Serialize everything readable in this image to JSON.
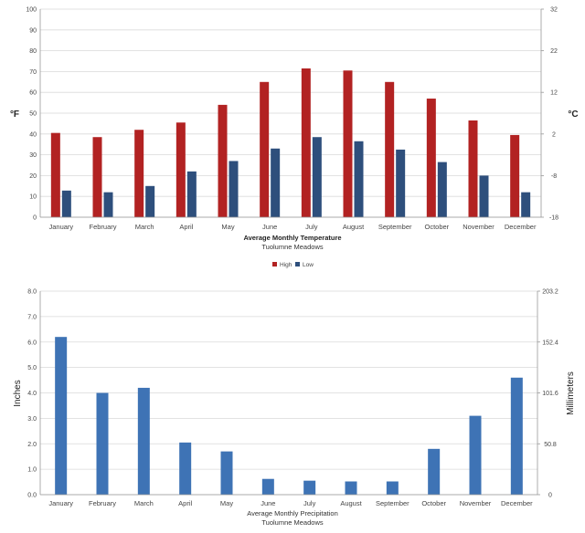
{
  "chart_data": [
    {
      "type": "bar",
      "title": "Average Monthly Temperature",
      "subtitle": "Tuolumne Meadows",
      "categories": [
        "January",
        "February",
        "March",
        "April",
        "May",
        "June",
        "July",
        "August",
        "September",
        "October",
        "November",
        "December"
      ],
      "series": [
        {
          "name": "High",
          "color": "#b22222",
          "values": [
            40.5,
            38.5,
            42,
            45.5,
            54,
            65,
            71.5,
            70.5,
            65,
            57,
            46.5,
            39.5
          ]
        },
        {
          "name": "Low",
          "color": "#2e4f7c",
          "values": [
            12.8,
            12,
            15,
            22,
            27,
            33,
            38.5,
            36.5,
            32.5,
            26.5,
            20,
            12
          ]
        }
      ],
      "ylabel": "°F",
      "ylabel_right": "°C",
      "ylim": [
        0,
        100
      ],
      "yticks": [
        "0",
        "10",
        "20",
        "30",
        "40",
        "50",
        "60",
        "70",
        "80",
        "90",
        "100"
      ],
      "yticks_right": [
        "-18",
        "-8",
        "2",
        "12",
        "22",
        "32"
      ],
      "legend_position": "bottom-center",
      "grid": true
    },
    {
      "type": "bar",
      "title": "Average Monthly Precipitation",
      "subtitle": "Tuolumne Meadows",
      "categories": [
        "January",
        "February",
        "March",
        "April",
        "May",
        "June",
        "July",
        "August",
        "September",
        "October",
        "November",
        "December"
      ],
      "series": [
        {
          "name": "Precipitation",
          "color": "#3e73b5",
          "values": [
            6.2,
            4.0,
            4.2,
            2.05,
            1.7,
            0.62,
            0.55,
            0.52,
            0.52,
            1.8,
            3.1,
            4.6
          ]
        }
      ],
      "ylabel": "Inches",
      "ylabel_right": "Millimeters",
      "ylim": [
        0,
        8
      ],
      "yticks": [
        "0.0",
        "1.0",
        "2.0",
        "3.0",
        "4.0",
        "5.0",
        "6.0",
        "7.0",
        "8.0"
      ],
      "yticks_right": [
        "0",
        "50.8",
        "101.6",
        "152.4",
        "203.2"
      ],
      "grid": true
    }
  ]
}
